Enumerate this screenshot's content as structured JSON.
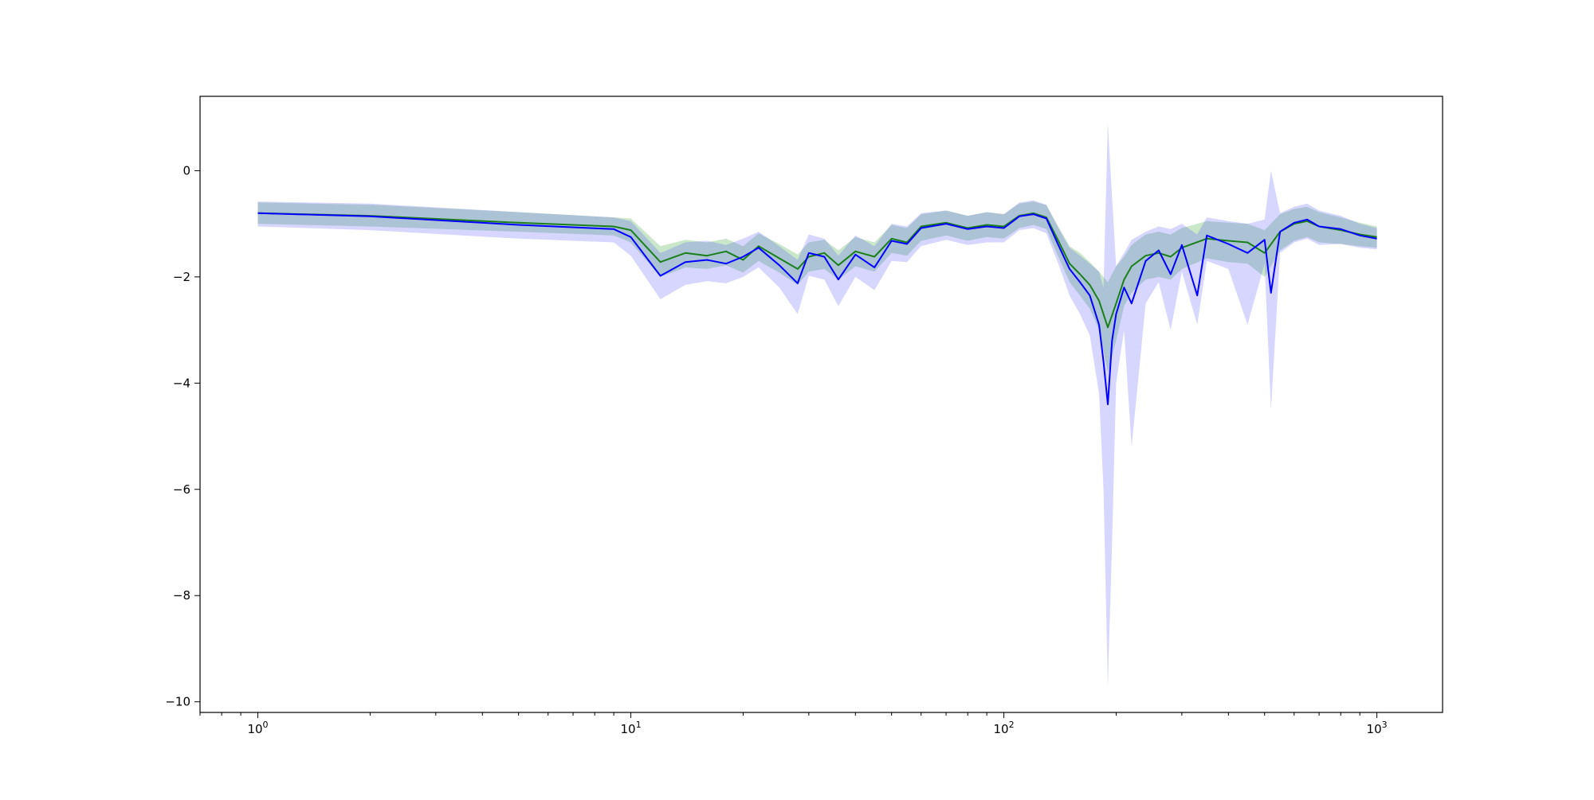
{
  "chart_data": {
    "type": "line",
    "title": "",
    "xlabel": "",
    "ylabel": "",
    "x_scale": "log",
    "xlim": [
      0.7,
      1500
    ],
    "ylim": [
      -10.2,
      1.4
    ],
    "grid": false,
    "legend": "none",
    "x_ticks": [
      {
        "value": 1,
        "base": "10",
        "exp": "0"
      },
      {
        "value": 10,
        "base": "10",
        "exp": "1"
      },
      {
        "value": 100,
        "base": "10",
        "exp": "2"
      },
      {
        "value": 1000,
        "base": "10",
        "exp": "3"
      }
    ],
    "y_ticks": [
      {
        "value": 0,
        "label": "0"
      },
      {
        "value": -2,
        "label": "−2"
      },
      {
        "value": -4,
        "label": "−4"
      },
      {
        "value": -6,
        "label": "−6"
      },
      {
        "value": -8,
        "label": "−8"
      },
      {
        "value": -10,
        "label": "−10"
      }
    ],
    "series": [
      {
        "color": "#1a7f1a",
        "band_color": "#2ca02c",
        "points": [
          [
            1,
            -0.8,
            -1.0,
            -0.6
          ],
          [
            2,
            -0.85,
            -1.05,
            -0.64
          ],
          [
            5,
            -0.98,
            -1.15,
            -0.78
          ],
          [
            9,
            -1.05,
            -1.22,
            -0.88
          ],
          [
            10,
            -1.12,
            -1.35,
            -0.9
          ],
          [
            12,
            -1.72,
            -2.0,
            -1.42
          ],
          [
            14,
            -1.55,
            -1.82,
            -1.3
          ],
          [
            16,
            -1.6,
            -1.85,
            -1.35
          ],
          [
            18,
            -1.52,
            -1.78,
            -1.28
          ],
          [
            20,
            -1.68,
            -1.92,
            -1.42
          ],
          [
            22,
            -1.42,
            -1.7,
            -1.18
          ],
          [
            25,
            -1.65,
            -1.92,
            -1.38
          ],
          [
            28,
            -1.85,
            -2.15,
            -1.58
          ],
          [
            30,
            -1.62,
            -1.9,
            -1.35
          ],
          [
            33,
            -1.55,
            -1.85,
            -1.3
          ],
          [
            36,
            -1.78,
            -2.05,
            -1.5
          ],
          [
            40,
            -1.52,
            -1.8,
            -1.25
          ],
          [
            45,
            -1.62,
            -1.9,
            -1.35
          ],
          [
            50,
            -1.28,
            -1.55,
            -1.02
          ],
          [
            55,
            -1.35,
            -1.6,
            -1.08
          ],
          [
            60,
            -1.05,
            -1.32,
            -0.82
          ],
          [
            70,
            -0.98,
            -1.22,
            -0.75
          ],
          [
            80,
            -1.08,
            -1.32,
            -0.85
          ],
          [
            90,
            -1.02,
            -1.25,
            -0.78
          ],
          [
            100,
            -1.05,
            -1.28,
            -0.82
          ],
          [
            110,
            -0.85,
            -1.08,
            -0.62
          ],
          [
            120,
            -0.8,
            -1.02,
            -0.58
          ],
          [
            130,
            -0.88,
            -1.1,
            -0.65
          ],
          [
            140,
            -1.32,
            -1.62,
            -1.05
          ],
          [
            150,
            -1.75,
            -2.1,
            -1.42
          ],
          [
            160,
            -1.95,
            -2.35,
            -1.55
          ],
          [
            170,
            -2.15,
            -2.6,
            -1.72
          ],
          [
            180,
            -2.45,
            -3.0,
            -1.9
          ],
          [
            190,
            -2.95,
            -3.8,
            -2.1
          ],
          [
            200,
            -2.5,
            -3.2,
            -1.8
          ],
          [
            210,
            -2.05,
            -2.55,
            -1.62
          ],
          [
            220,
            -1.8,
            -2.3,
            -1.4
          ],
          [
            240,
            -1.6,
            -2.05,
            -1.2
          ],
          [
            260,
            -1.55,
            -2.0,
            -1.15
          ],
          [
            280,
            -1.62,
            -2.05,
            -1.2
          ],
          [
            300,
            -1.45,
            -1.85,
            -1.08
          ],
          [
            350,
            -1.28,
            -1.65,
            -0.95
          ],
          [
            400,
            -1.32,
            -1.72,
            -0.98
          ],
          [
            450,
            -1.35,
            -1.75,
            -1.0
          ],
          [
            500,
            -1.55,
            -2.0,
            -1.12
          ],
          [
            550,
            -1.15,
            -1.5,
            -0.82
          ],
          [
            600,
            -1.0,
            -1.32,
            -0.72
          ],
          [
            650,
            -0.95,
            -1.25,
            -0.68
          ],
          [
            700,
            -1.05,
            -1.35,
            -0.78
          ],
          [
            800,
            -1.12,
            -1.38,
            -0.88
          ],
          [
            900,
            -1.2,
            -1.42,
            -0.98
          ],
          [
            1000,
            -1.25,
            -1.45,
            -1.05
          ]
        ]
      },
      {
        "color": "#0000ff",
        "band_color": "#4444ff",
        "points": [
          [
            1,
            -0.8,
            -1.05,
            -0.58
          ],
          [
            2,
            -0.86,
            -1.12,
            -0.62
          ],
          [
            5,
            -1.02,
            -1.28,
            -0.78
          ],
          [
            9,
            -1.1,
            -1.35,
            -0.88
          ],
          [
            10,
            -1.25,
            -1.6,
            -0.95
          ],
          [
            12,
            -1.98,
            -2.42,
            -1.55
          ],
          [
            14,
            -1.72,
            -2.15,
            -1.35
          ],
          [
            16,
            -1.68,
            -2.08,
            -1.32
          ],
          [
            18,
            -1.75,
            -2.12,
            -1.4
          ],
          [
            20,
            -1.62,
            -2.0,
            -1.28
          ],
          [
            22,
            -1.45,
            -1.82,
            -1.15
          ],
          [
            25,
            -1.78,
            -2.2,
            -1.42
          ],
          [
            28,
            -2.12,
            -2.7,
            -1.68
          ],
          [
            30,
            -1.55,
            -1.98,
            -1.2
          ],
          [
            33,
            -1.62,
            -2.05,
            -1.28
          ],
          [
            36,
            -2.05,
            -2.55,
            -1.6
          ],
          [
            40,
            -1.58,
            -2.0,
            -1.22
          ],
          [
            45,
            -1.82,
            -2.25,
            -1.42
          ],
          [
            50,
            -1.32,
            -1.7,
            -1.0
          ],
          [
            55,
            -1.38,
            -1.72,
            -1.05
          ],
          [
            60,
            -1.08,
            -1.42,
            -0.8
          ],
          [
            70,
            -1.0,
            -1.3,
            -0.75
          ],
          [
            80,
            -1.1,
            -1.4,
            -0.85
          ],
          [
            90,
            -1.05,
            -1.35,
            -0.78
          ],
          [
            100,
            -1.08,
            -1.35,
            -0.82
          ],
          [
            110,
            -0.86,
            -1.12,
            -0.6
          ],
          [
            120,
            -0.82,
            -1.08,
            -0.56
          ],
          [
            130,
            -0.9,
            -1.18,
            -0.64
          ],
          [
            140,
            -1.4,
            -1.75,
            -1.08
          ],
          [
            150,
            -1.85,
            -2.35,
            -1.45
          ],
          [
            160,
            -2.1,
            -2.7,
            -1.6
          ],
          [
            170,
            -2.35,
            -3.1,
            -1.75
          ],
          [
            180,
            -2.9,
            -4.2,
            -1.9
          ],
          [
            185,
            -3.6,
            -6.0,
            -2.2
          ],
          [
            190,
            -4.4,
            -9.7,
            0.9
          ],
          [
            195,
            -3.2,
            -7.0,
            -0.5
          ],
          [
            200,
            -2.7,
            -4.0,
            -1.8
          ],
          [
            210,
            -2.2,
            -3.0,
            -1.55
          ],
          [
            220,
            -2.5,
            -5.2,
            -1.3
          ],
          [
            240,
            -1.7,
            -2.5,
            -1.15
          ],
          [
            260,
            -1.5,
            -2.1,
            -1.05
          ],
          [
            280,
            -1.95,
            -3.0,
            -1.1
          ],
          [
            300,
            -1.4,
            -1.9,
            -1.0
          ],
          [
            330,
            -2.35,
            -2.9,
            -1.2
          ],
          [
            350,
            -1.22,
            -1.7,
            -0.88
          ],
          [
            400,
            -1.38,
            -1.85,
            -0.95
          ],
          [
            450,
            -1.55,
            -2.9,
            -1.0
          ],
          [
            500,
            -1.3,
            -1.75,
            -0.92
          ],
          [
            520,
            -2.3,
            -4.5,
            0.0
          ],
          [
            550,
            -1.15,
            -1.55,
            -0.8
          ],
          [
            600,
            -0.98,
            -1.35,
            -0.68
          ],
          [
            650,
            -0.92,
            -1.28,
            -0.62
          ],
          [
            700,
            -1.05,
            -1.4,
            -0.75
          ],
          [
            800,
            -1.1,
            -1.38,
            -0.85
          ],
          [
            900,
            -1.22,
            -1.45,
            -1.0
          ],
          [
            1000,
            -1.28,
            -1.48,
            -1.08
          ]
        ]
      }
    ]
  }
}
